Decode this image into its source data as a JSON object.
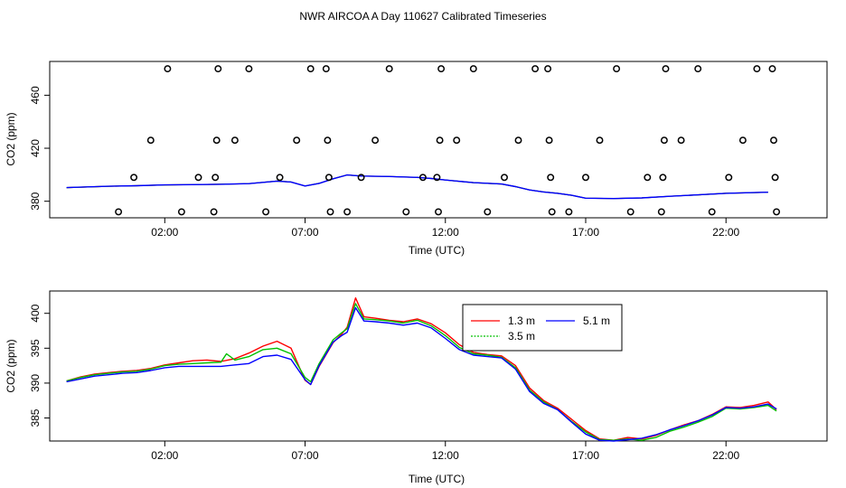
{
  "figure": {
    "title": "NWR AIRCOA A  Day 110627  Calibrated Timeseries"
  },
  "colors": {
    "axis": "#000000",
    "series_1_3m": "#ff0000",
    "series_3_5m": "#00c000",
    "series_5_1m": "#0000ff",
    "calibration_points": "#000000"
  },
  "chart_data": [
    {
      "type": "scatter",
      "xlabel": "Time (UTC)",
      "ylabel": "CO2 (ppm)",
      "x_unit": "hours since 00:00 UTC",
      "xlim": [
        -2.1,
        25.6
      ],
      "ylim": [
        367.5,
        485.5
      ],
      "xticks": [
        2,
        7,
        12,
        17,
        22
      ],
      "xtick_labels": [
        "02:00",
        "07:00",
        "12:00",
        "17:00",
        "22:00"
      ],
      "yticks": [
        380,
        420,
        460
      ],
      "ytick_labels": [
        "380",
        "420",
        "460"
      ],
      "grid": false,
      "calibration_points": [
        {
          "t": 0.35,
          "co2": 372
        },
        {
          "t": 0.9,
          "co2": 398
        },
        {
          "t": 1.5,
          "co2": 426
        },
        {
          "t": 2.1,
          "co2": 480
        },
        {
          "t": 2.6,
          "co2": 372
        },
        {
          "t": 3.2,
          "co2": 398
        },
        {
          "t": 3.75,
          "co2": 372
        },
        {
          "t": 3.8,
          "co2": 398
        },
        {
          "t": 3.85,
          "co2": 426
        },
        {
          "t": 3.9,
          "co2": 480
        },
        {
          "t": 4.5,
          "co2": 426
        },
        {
          "t": 5.0,
          "co2": 480
        },
        {
          "t": 5.6,
          "co2": 372
        },
        {
          "t": 6.1,
          "co2": 398
        },
        {
          "t": 6.7,
          "co2": 426
        },
        {
          "t": 7.2,
          "co2": 480
        },
        {
          "t": 7.75,
          "co2": 480
        },
        {
          "t": 7.8,
          "co2": 426
        },
        {
          "t": 7.85,
          "co2": 398
        },
        {
          "t": 7.9,
          "co2": 372
        },
        {
          "t": 8.5,
          "co2": 372
        },
        {
          "t": 9.0,
          "co2": 398
        },
        {
          "t": 9.5,
          "co2": 426
        },
        {
          "t": 10.0,
          "co2": 480
        },
        {
          "t": 10.6,
          "co2": 372
        },
        {
          "t": 11.2,
          "co2": 398
        },
        {
          "t": 11.7,
          "co2": 398
        },
        {
          "t": 11.75,
          "co2": 372
        },
        {
          "t": 11.8,
          "co2": 426
        },
        {
          "t": 11.85,
          "co2": 480
        },
        {
          "t": 12.4,
          "co2": 426
        },
        {
          "t": 13.0,
          "co2": 480
        },
        {
          "t": 13.5,
          "co2": 372
        },
        {
          "t": 14.1,
          "co2": 398
        },
        {
          "t": 14.6,
          "co2": 426
        },
        {
          "t": 15.2,
          "co2": 480
        },
        {
          "t": 15.65,
          "co2": 480
        },
        {
          "t": 15.7,
          "co2": 426
        },
        {
          "t": 15.75,
          "co2": 398
        },
        {
          "t": 15.8,
          "co2": 372
        },
        {
          "t": 16.4,
          "co2": 372
        },
        {
          "t": 17.0,
          "co2": 398
        },
        {
          "t": 17.5,
          "co2": 426
        },
        {
          "t": 18.1,
          "co2": 480
        },
        {
          "t": 18.6,
          "co2": 372
        },
        {
          "t": 19.2,
          "co2": 398
        },
        {
          "t": 19.7,
          "co2": 372
        },
        {
          "t": 19.75,
          "co2": 398
        },
        {
          "t": 19.8,
          "co2": 426
        },
        {
          "t": 19.85,
          "co2": 480
        },
        {
          "t": 20.4,
          "co2": 426
        },
        {
          "t": 21.0,
          "co2": 480
        },
        {
          "t": 21.5,
          "co2": 372
        },
        {
          "t": 22.1,
          "co2": 398
        },
        {
          "t": 22.6,
          "co2": 426
        },
        {
          "t": 23.1,
          "co2": 480
        },
        {
          "t": 23.65,
          "co2": 480
        },
        {
          "t": 23.7,
          "co2": 426
        },
        {
          "t": 23.75,
          "co2": 398
        },
        {
          "t": 23.8,
          "co2": 372
        }
      ],
      "series": [
        {
          "values": [
            [
              -1.5,
              390.3
            ],
            [
              0,
              391.3
            ],
            [
              1,
              391.7
            ],
            [
              2,
              392.3
            ],
            [
              3,
              392.5
            ],
            [
              4,
              392.8
            ],
            [
              5,
              393.3
            ],
            [
              6,
              395.2
            ],
            [
              6.5,
              394.5
            ],
            [
              7,
              391.5
            ],
            [
              7.5,
              393.5
            ],
            [
              8,
              397
            ],
            [
              8.5,
              399.8
            ],
            [
              9,
              399
            ],
            [
              10,
              398.7
            ],
            [
              11,
              398
            ],
            [
              11.5,
              397.2
            ],
            [
              12,
              396
            ],
            [
              13,
              394
            ],
            [
              14,
              393
            ],
            [
              14.5,
              391
            ],
            [
              15,
              388.5
            ],
            [
              15.5,
              387
            ],
            [
              16,
              386
            ],
            [
              16.5,
              384.5
            ],
            [
              17,
              382.3
            ],
            [
              18,
              382
            ],
            [
              19,
              382.5
            ],
            [
              20,
              383.7
            ],
            [
              21,
              384.8
            ],
            [
              22,
              386
            ],
            [
              23,
              386.5
            ],
            [
              23.5,
              386.8
            ]
          ]
        }
      ]
    },
    {
      "type": "line",
      "xlabel": "Time (UTC)",
      "ylabel": "CO2 (ppm)",
      "x_unit": "hours since 00:00 UTC",
      "xlim": [
        -2.1,
        25.6
      ],
      "ylim": [
        381.7,
        403.2
      ],
      "xticks": [
        2,
        7,
        12,
        17,
        22
      ],
      "xtick_labels": [
        "02:00",
        "07:00",
        "12:00",
        "17:00",
        "22:00"
      ],
      "yticks": [
        385,
        390,
        395,
        400
      ],
      "ytick_labels": [
        "385",
        "390",
        "395",
        "400"
      ],
      "grid": false,
      "legend": {
        "position": "top-center",
        "entries": [
          {
            "label": "1.3 m",
            "color": "#ff0000"
          },
          {
            "label": "5.1 m",
            "color": "#0000ff"
          },
          {
            "label": "3.5 m",
            "color": "#00c000"
          }
        ]
      },
      "series": [
        {
          "name": "1.3 m",
          "color": "#ff0000",
          "values": [
            [
              -1.5,
              390.3
            ],
            [
              -1,
              390.9
            ],
            [
              -0.5,
              391.3
            ],
            [
              0,
              391.5
            ],
            [
              0.5,
              391.7
            ],
            [
              1,
              391.8
            ],
            [
              1.5,
              392.1
            ],
            [
              2,
              392.6
            ],
            [
              2.5,
              392.9
            ],
            [
              3,
              393.2
            ],
            [
              3.5,
              393.3
            ],
            [
              4,
              393.1
            ],
            [
              4.5,
              393.5
            ],
            [
              5,
              394.3
            ],
            [
              5.5,
              395.3
            ],
            [
              6,
              396
            ],
            [
              6.5,
              395
            ],
            [
              7,
              390.4
            ],
            [
              7.2,
              389.8
            ],
            [
              7.5,
              392.4
            ],
            [
              8,
              395.8
            ],
            [
              8.3,
              397
            ],
            [
              8.5,
              398
            ],
            [
              8.8,
              402.2
            ],
            [
              9.1,
              399.5
            ],
            [
              9.5,
              399.3
            ],
            [
              10,
              399
            ],
            [
              10.5,
              398.8
            ],
            [
              11,
              399.2
            ],
            [
              11.5,
              398.5
            ],
            [
              12,
              397.2
            ],
            [
              12.5,
              395.5
            ],
            [
              13,
              394.4
            ],
            [
              13.5,
              394.1
            ],
            [
              14,
              393.9
            ],
            [
              14.5,
              392.5
            ],
            [
              15,
              389.3
            ],
            [
              15.5,
              387.5
            ],
            [
              16,
              386.4
            ],
            [
              16.5,
              384.8
            ],
            [
              17,
              383.2
            ],
            [
              17.5,
              382
            ],
            [
              18,
              381.8
            ],
            [
              18.5,
              382.2
            ],
            [
              19,
              382
            ],
            [
              19.5,
              382.5
            ],
            [
              20,
              383.3
            ],
            [
              20.5,
              384
            ],
            [
              21,
              384.6
            ],
            [
              21.5,
              385.5
            ],
            [
              22,
              386.6
            ],
            [
              22.5,
              386.5
            ],
            [
              23,
              386.8
            ],
            [
              23.5,
              387.3
            ],
            [
              23.8,
              386.2
            ]
          ]
        },
        {
          "name": "3.5 m",
          "color": "#00c000",
          "values": [
            [
              -1.5,
              390.3
            ],
            [
              -1,
              390.8
            ],
            [
              -0.5,
              391.2
            ],
            [
              0,
              391.4
            ],
            [
              0.5,
              391.6
            ],
            [
              1,
              391.7
            ],
            [
              1.5,
              392
            ],
            [
              2,
              392.5
            ],
            [
              2.5,
              392.7
            ],
            [
              3,
              392.8
            ],
            [
              3.5,
              392.9
            ],
            [
              4,
              393
            ],
            [
              4.2,
              394.2
            ],
            [
              4.5,
              393.3
            ],
            [
              5,
              393.8
            ],
            [
              5.5,
              394.8
            ],
            [
              6,
              395
            ],
            [
              6.5,
              394.2
            ],
            [
              7,
              390.8
            ],
            [
              7.2,
              390.2
            ],
            [
              7.5,
              392.8
            ],
            [
              8,
              396.2
            ],
            [
              8.3,
              397.2
            ],
            [
              8.5,
              397.8
            ],
            [
              8.8,
              401.4
            ],
            [
              9.1,
              399.2
            ],
            [
              9.5,
              399.1
            ],
            [
              10,
              398.9
            ],
            [
              10.5,
              398.6
            ],
            [
              11,
              399
            ],
            [
              11.5,
              398.2
            ],
            [
              12,
              396.8
            ],
            [
              12.5,
              395.1
            ],
            [
              13,
              394.2
            ],
            [
              13.5,
              394
            ],
            [
              14,
              393.7
            ],
            [
              14.5,
              392.2
            ],
            [
              15,
              389
            ],
            [
              15.5,
              387.3
            ],
            [
              16,
              386.2
            ],
            [
              16.5,
              384.5
            ],
            [
              17,
              383
            ],
            [
              17.5,
              381.9
            ],
            [
              18,
              381.8
            ],
            [
              18.5,
              382
            ],
            [
              19,
              381.8
            ],
            [
              19.5,
              382.2
            ],
            [
              20,
              383.1
            ],
            [
              20.5,
              383.7
            ],
            [
              21,
              384.4
            ],
            [
              21.5,
              385.2
            ],
            [
              22,
              386.4
            ],
            [
              22.5,
              386.3
            ],
            [
              23,
              386.5
            ],
            [
              23.5,
              386.8
            ],
            [
              23.8,
              386
            ]
          ]
        },
        {
          "name": "5.1 m",
          "color": "#0000ff",
          "values": [
            [
              -1.5,
              390.2
            ],
            [
              -1,
              390.6
            ],
            [
              -0.5,
              391
            ],
            [
              0,
              391.2
            ],
            [
              0.5,
              391.4
            ],
            [
              1,
              391.5
            ],
            [
              1.5,
              391.8
            ],
            [
              2,
              392.2
            ],
            [
              2.5,
              392.4
            ],
            [
              3,
              392.4
            ],
            [
              3.5,
              392.4
            ],
            [
              4,
              392.4
            ],
            [
              4.5,
              392.6
            ],
            [
              5,
              392.8
            ],
            [
              5.5,
              393.8
            ],
            [
              6,
              394
            ],
            [
              6.5,
              393.4
            ],
            [
              7,
              390.5
            ],
            [
              7.2,
              389.8
            ],
            [
              7.5,
              392.5
            ],
            [
              8,
              395.9
            ],
            [
              8.3,
              396.8
            ],
            [
              8.5,
              397.3
            ],
            [
              8.8,
              400.8
            ],
            [
              9.1,
              398.9
            ],
            [
              9.5,
              398.8
            ],
            [
              10,
              398.6
            ],
            [
              10.5,
              398.3
            ],
            [
              11,
              398.6
            ],
            [
              11.5,
              397.9
            ],
            [
              12,
              396.4
            ],
            [
              12.5,
              394.8
            ],
            [
              13,
              394
            ],
            [
              13.5,
              393.8
            ],
            [
              14,
              393.6
            ],
            [
              14.5,
              392
            ],
            [
              15,
              388.8
            ],
            [
              15.5,
              387.1
            ],
            [
              16,
              386.2
            ],
            [
              16.5,
              384.4
            ],
            [
              17,
              382.7
            ],
            [
              17.5,
              381.8
            ],
            [
              18,
              381.7
            ],
            [
              18.5,
              381.9
            ],
            [
              19,
              382.1
            ],
            [
              19.5,
              382.6
            ],
            [
              20,
              383.3
            ],
            [
              20.5,
              383.9
            ],
            [
              21,
              384.6
            ],
            [
              21.5,
              385.4
            ],
            [
              22,
              386.5
            ],
            [
              22.5,
              386.4
            ],
            [
              23,
              386.6
            ],
            [
              23.5,
              387
            ],
            [
              23.8,
              386.3
            ]
          ]
        }
      ]
    }
  ]
}
